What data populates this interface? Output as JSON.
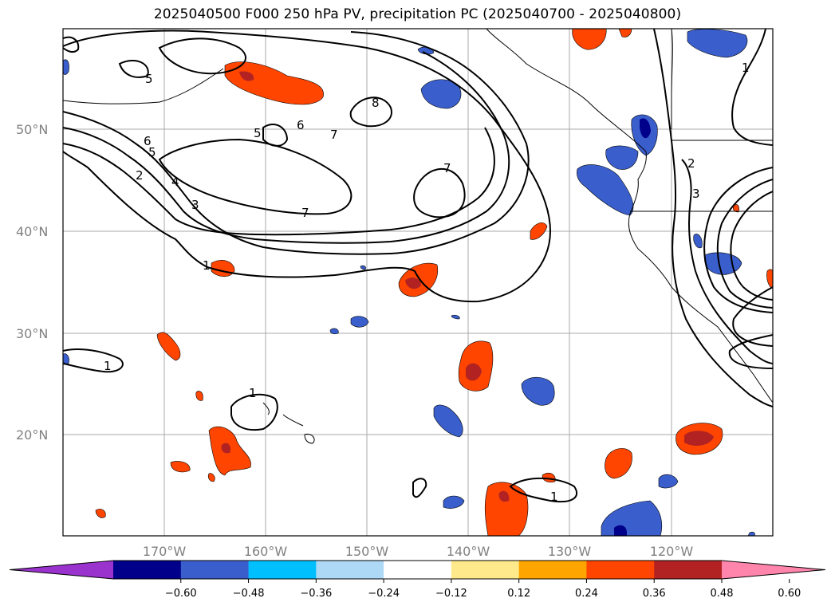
{
  "title": "2025040500 F000 250 hPa PV, precipitation PC (2025040700 - 2025040800)",
  "lat_labels": [
    "50°N",
    "40°N",
    "30°N",
    "20°N"
  ],
  "lon_labels": [
    "170°W",
    "160°W",
    "150°W",
    "140°W",
    "130°W",
    "120°W"
  ],
  "colorbar": {
    "ticks": [
      "−0.60",
      "−0.48",
      "−0.36",
      "−0.24",
      "−0.12",
      "0.12",
      "0.24",
      "0.36",
      "0.48",
      "0.60"
    ],
    "colors": [
      "#9a32cd",
      "#00008b",
      "#3a5fcd",
      "#00bfff",
      "#add8f6",
      "#ffffff",
      "#ffe98a",
      "#ffa500",
      "#ff4500",
      "#b22222",
      "#ff85ad"
    ]
  },
  "contour_labels": [
    "1",
    "2",
    "3",
    "4",
    "5",
    "6",
    "7",
    "8"
  ]
}
